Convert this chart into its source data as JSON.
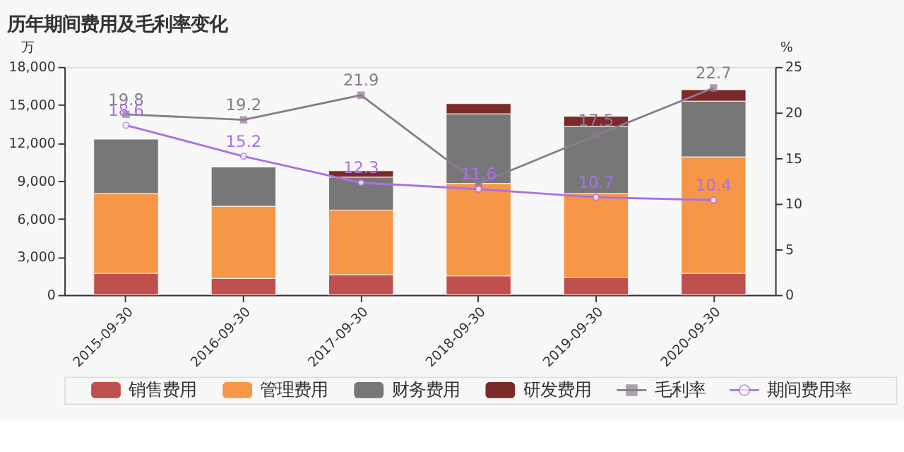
{
  "chart_data": {
    "type": "bar",
    "title": "历年期间费用及毛利率变化",
    "ylabel": "万",
    "y2label": "%",
    "categories": [
      "2015-09-30",
      "2016-09-30",
      "2017-09-30",
      "2018-09-30",
      "2019-09-30",
      "2020-09-30"
    ],
    "stacked": true,
    "series": [
      {
        "name": "销售费用",
        "color": "#c0504d",
        "values": [
          1700,
          1300,
          1600,
          1500,
          1400,
          1700
        ]
      },
      {
        "name": "管理费用",
        "color": "#f79646",
        "values": [
          6300,
          5700,
          5100,
          7300,
          6600,
          9200
        ]
      },
      {
        "name": "财务费用",
        "color": "#777777",
        "values": [
          4300,
          3100,
          2600,
          5500,
          5300,
          4400
        ]
      },
      {
        "name": "研发费用",
        "color": "#7b2a2a",
        "values": [
          null,
          null,
          500,
          800,
          800,
          900
        ]
      },
      {
        "name": "毛利率",
        "type": "line",
        "axis": "y2",
        "marker": "square",
        "color": "#8c7b8e",
        "values": [
          19.8,
          19.2,
          21.9,
          12.2,
          17.5,
          22.7
        ],
        "value_labels": [
          "19.8",
          "19.2",
          "21.9",
          null,
          "17.5",
          "22.7"
        ]
      },
      {
        "name": "期间费用率",
        "type": "line",
        "axis": "y2",
        "marker": "circle",
        "color": "#a970e8",
        "values": [
          18.6,
          15.2,
          12.3,
          11.6,
          10.7,
          10.4
        ],
        "value_labels": [
          "18.6",
          "15.2",
          "12.3",
          "11.6",
          "10.7",
          "10.4"
        ]
      }
    ],
    "ylim": [
      0,
      18000
    ],
    "yticks": [
      0,
      {
        "value": 3000,
        "label": "3,000"
      },
      {
        "value": 6000,
        "label": "6,000"
      },
      {
        "value": 9000,
        "label": "9,000"
      },
      {
        "value": 12000,
        "label": "12,000"
      },
      {
        "value": 15000,
        "label": "15,000"
      },
      {
        "value": 18000,
        "label": "18,000"
      }
    ],
    "y2lim": [
      0,
      25
    ],
    "y2ticks": [
      0,
      5,
      10,
      15,
      20,
      25
    ],
    "grid": false,
    "legend": "bottom"
  }
}
